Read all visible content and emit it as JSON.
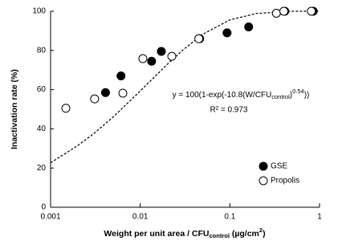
{
  "chart_data": {
    "type": "scatter",
    "x_label": [
      "Weight per unit area / CFU",
      "control",
      " (µg/cm",
      "2",
      ")"
    ],
    "y_label": "Inactivation rate (%)",
    "xscale": "log",
    "xlim": [
      0.001,
      1
    ],
    "xticks": [
      0.001,
      0.01,
      0.1,
      1
    ],
    "ylim": [
      0,
      100
    ],
    "yticks": [
      0,
      20,
      40,
      60,
      80,
      100
    ],
    "legend": "lower right",
    "series": [
      {
        "name": "GSE",
        "color": "#000000",
        "fill": true,
        "x": [
          0.0041,
          0.0061,
          0.0134,
          0.0172,
          0.046,
          0.093,
          0.162,
          0.41,
          0.85
        ],
        "values": [
          58.5,
          67,
          74.5,
          79.5,
          86,
          89,
          92,
          100,
          100
        ]
      },
      {
        "name": "Propolis",
        "color": "#000000",
        "fill": false,
        "x": [
          0.00148,
          0.0031,
          0.0064,
          0.0107,
          0.0225,
          0.045,
          0.33,
          0.4,
          0.81
        ],
        "values": [
          50.5,
          55.3,
          58.2,
          75.8,
          77,
          86,
          99,
          100,
          100
        ]
      }
    ],
    "fit": {
      "color": "#000000",
      "dash": true,
      "x": [
        0.001,
        0.002,
        0.003,
        0.005,
        0.01,
        0.02,
        0.03,
        0.05,
        0.1,
        0.2,
        0.5,
        1
      ],
      "values": [
        22.7,
        31.4,
        37.4,
        46.1,
        59.3,
        72.9,
        80.3,
        88.3,
        95.6,
        98.9,
        100,
        100
      ]
    },
    "equation": [
      "y = 100(1-exp(-10.8(W/CFU",
      "control",
      ")",
      "0.54",
      "))"
    ],
    "r_squared": "R² = 0.973"
  }
}
